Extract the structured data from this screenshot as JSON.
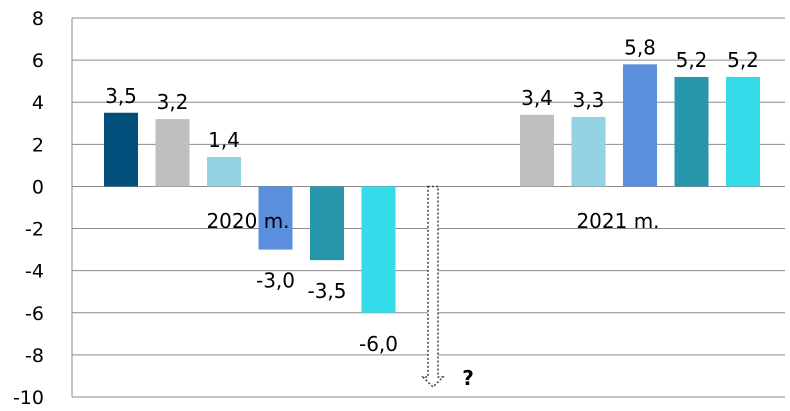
{
  "chart_data": {
    "type": "bar",
    "ylim": [
      -10,
      8
    ],
    "yticks": [
      "8",
      "6",
      "4",
      "2",
      "0",
      "-2",
      "-4",
      "-6",
      "-8",
      "-10"
    ],
    "grid": true,
    "legend": "none",
    "groups": [
      {
        "label": "2020 m.",
        "bars": [
          {
            "value": 3.5,
            "label": "3,5",
            "color": "#034f7c"
          },
          {
            "value": 3.2,
            "label": "3,2",
            "color": "#bfbfbf"
          },
          {
            "value": 1.4,
            "label": "1,4",
            "color": "#93d3e3"
          },
          {
            "value": -3.0,
            "label": "-3,0",
            "color": "#5b8fde"
          },
          {
            "value": -3.5,
            "label": "-3,5",
            "color": "#2896aa"
          },
          {
            "value": -6.0,
            "label": "-6,0",
            "color": "#34dbe9"
          }
        ]
      },
      {
        "label": "2021 m.",
        "bars": [
          {
            "value": 3.4,
            "label": "3,4",
            "color": "#bfbfbf"
          },
          {
            "value": 3.3,
            "label": "3,3",
            "color": "#93d3e3"
          },
          {
            "value": 5.8,
            "label": "5,8",
            "color": "#5b8fde"
          },
          {
            "value": 5.2,
            "label": "5,2",
            "color": "#2896aa"
          },
          {
            "value": 5.2,
            "label": "5,2",
            "color": "#34dbe9"
          }
        ]
      }
    ],
    "annotation": {
      "text": "?",
      "arrow": "dotted-down",
      "from": 0,
      "to": -10
    }
  }
}
